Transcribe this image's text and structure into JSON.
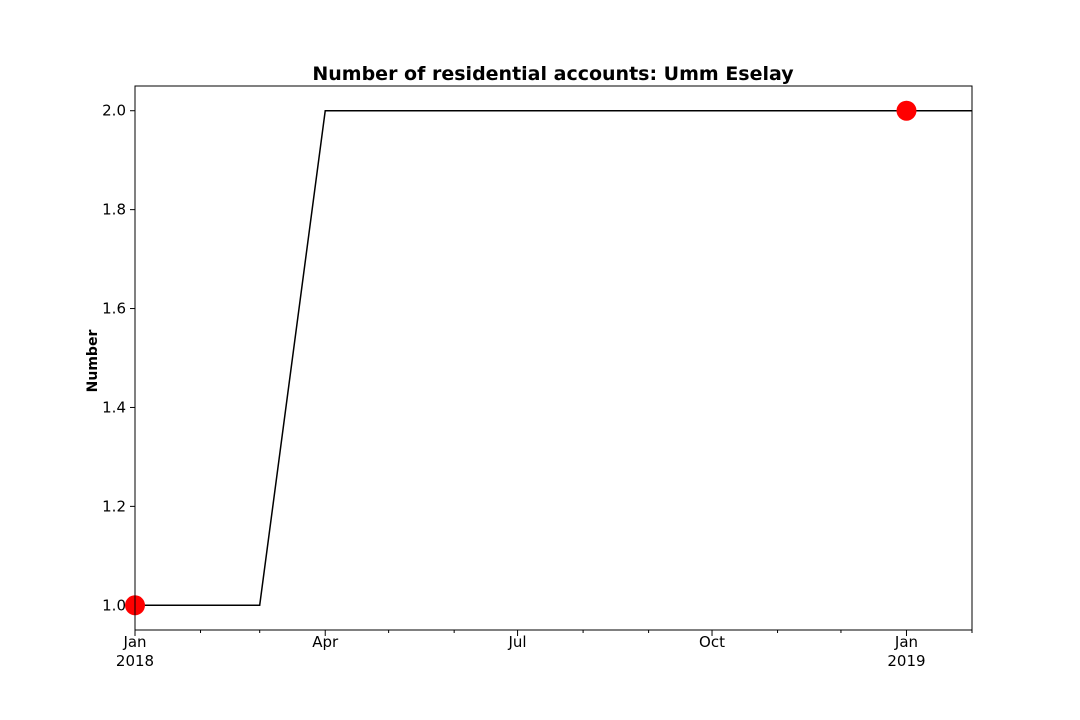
{
  "chart_data": {
    "type": "line",
    "title": "Number of residential accounts: Umm Eselay",
    "xlabel": "",
    "ylabel": "Number",
    "x": [
      "2018-01-01",
      "2018-02-01",
      "2018-03-01",
      "2018-04-01",
      "2018-05-01",
      "2018-06-01",
      "2018-07-01",
      "2018-08-01",
      "2018-09-01",
      "2018-10-01",
      "2018-11-01",
      "2018-12-01",
      "2019-01-01",
      "2019-02-01"
    ],
    "series": [
      {
        "color": "#000000",
        "values": [
          1,
          1,
          1,
          2,
          2,
          2,
          2,
          2,
          2,
          2,
          2,
          2,
          2,
          2
        ]
      }
    ],
    "markers": [
      {
        "x": "2018-01-01",
        "y": 1.0,
        "color": "#ff0000"
      },
      {
        "x": "2019-01-01",
        "y": 2.0,
        "color": "#ff0000"
      }
    ],
    "xlim": [
      "2018-01-01",
      "2019-02-01"
    ],
    "ylim": [
      0.95,
      2.05
    ],
    "yticks": [
      1.0,
      1.2,
      1.4,
      1.6,
      1.8,
      2.0
    ],
    "ytick_labels": [
      "1.0",
      "1.2",
      "1.4",
      "1.6",
      "1.8",
      "2.0"
    ],
    "xticks_major": [
      {
        "x": "2018-01-01",
        "label": "Jan",
        "sublabel": "2018"
      },
      {
        "x": "2018-04-01",
        "label": "Apr",
        "sublabel": ""
      },
      {
        "x": "2018-07-01",
        "label": "Jul",
        "sublabel": ""
      },
      {
        "x": "2018-10-01",
        "label": "Oct",
        "sublabel": ""
      },
      {
        "x": "2019-01-01",
        "label": "Jan",
        "sublabel": "2019"
      }
    ],
    "xticks_minor": [
      "2018-02-01",
      "2018-03-01",
      "2018-05-01",
      "2018-06-01",
      "2018-08-01",
      "2018-09-01",
      "2018-11-01",
      "2018-12-01",
      "2019-02-01"
    ],
    "grid": false,
    "legend": "none"
  }
}
